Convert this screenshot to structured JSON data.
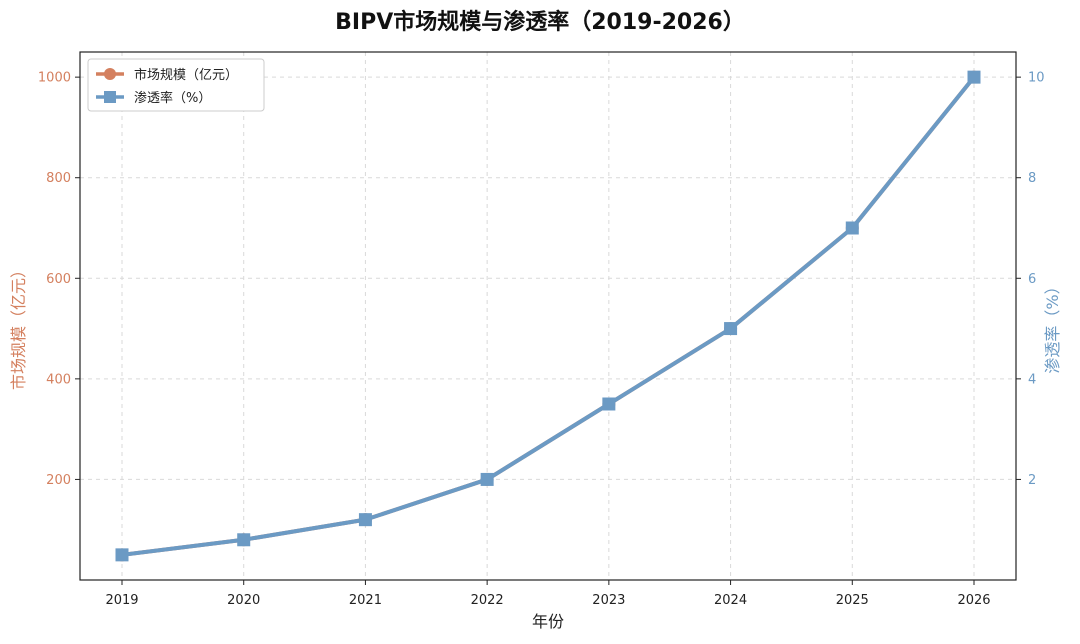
{
  "chart_data": {
    "type": "line",
    "title": "BIPV市场规模与渗透率（2019-2026）",
    "xlabel": "年份",
    "ylabel_left": "市场规模（亿元）",
    "ylabel_right": "渗透率（%）",
    "x": [
      "2019",
      "2020",
      "2021",
      "2022",
      "2023",
      "2024",
      "2025",
      "2026"
    ],
    "ylim_left": [
      0,
      1050
    ],
    "ylim_right": [
      0,
      10.5
    ],
    "yticks_left": [
      "200",
      "400",
      "600",
      "800",
      "1000"
    ],
    "yticks_right": [
      "2",
      "4",
      "6",
      "8",
      "10"
    ],
    "grid": true,
    "legend_position": "top-left",
    "series": [
      {
        "name": "市场规模（亿元）",
        "axis": "left",
        "marker": "circle",
        "color": "#D4805F",
        "values": [
          50,
          80,
          120,
          200,
          350,
          500,
          700,
          1000
        ]
      },
      {
        "name": "渗透率（%）",
        "axis": "right",
        "marker": "square",
        "color": "#6B9AC4",
        "values": [
          0.5,
          0.8,
          1.2,
          2.0,
          3.5,
          5.0,
          7.0,
          10.0
        ]
      }
    ],
    "colors": {
      "left_axis": "#D4805F",
      "right_axis": "#6B9AC4",
      "grid": "#d9d9d9",
      "frame": "#222222"
    }
  }
}
